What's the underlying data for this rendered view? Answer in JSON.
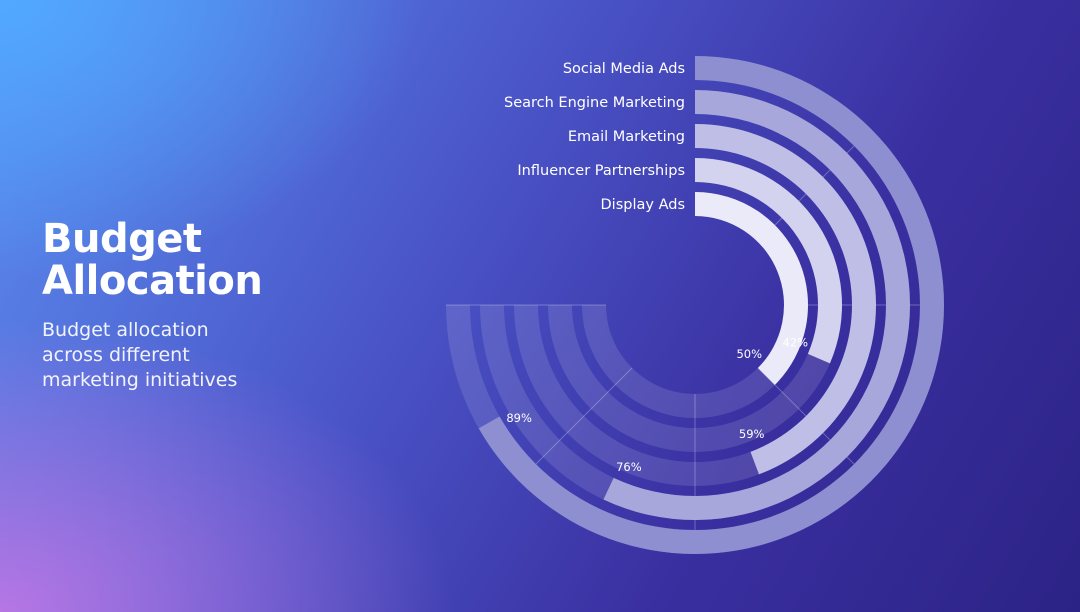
{
  "header": {
    "title_line1": "Budget",
    "title_line2": "Allocation",
    "subtitle": "Budget allocation across different marketing initiatives"
  },
  "chart_data": {
    "type": "radial-bar",
    "title": "Budget Allocation",
    "subtitle": "Budget allocation across different marketing initiatives",
    "categories": [
      "Social Media Ads",
      "Search Engine Marketing",
      "Email Marketing",
      "Influencer Partnerships",
      "Display Ads"
    ],
    "values": [
      89,
      76,
      59,
      42,
      50
    ],
    "value_labels": [
      "89%",
      "76%",
      "59%",
      "42%",
      "50%"
    ],
    "max": 100,
    "colors": [
      "#8e8fd0",
      "#a7a7dc",
      "#bebee6",
      "#d3d3ef",
      "#eaeaf8"
    ],
    "track_color": "rgba(255,255,255,0.12)",
    "grid": true
  }
}
